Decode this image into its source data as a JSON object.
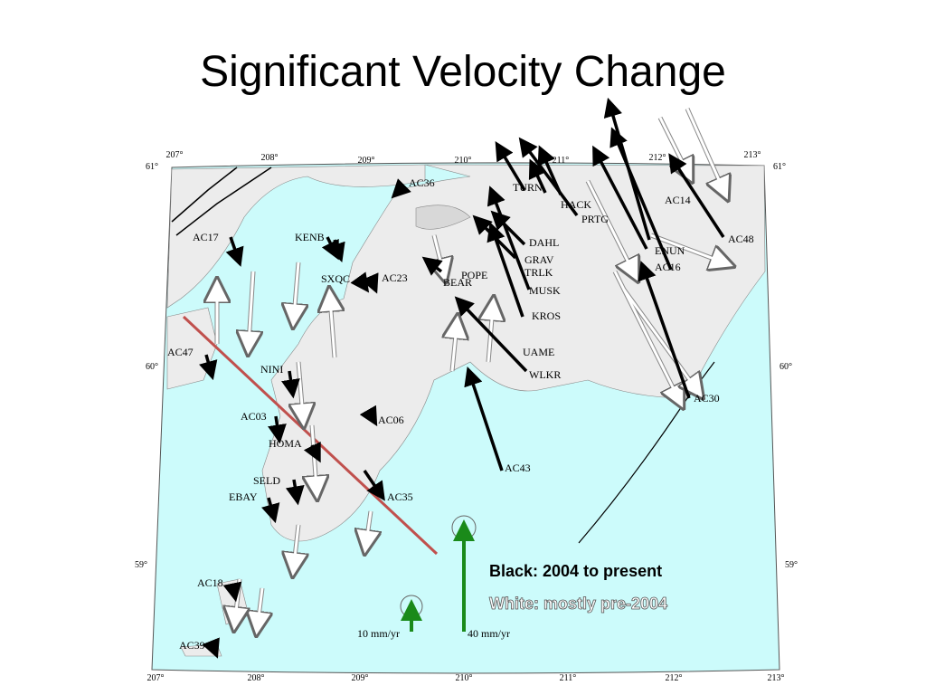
{
  "title": "Significant Velocity Change",
  "map": {
    "lon_labels_top": [
      "207°",
      "208°",
      "209°",
      "210°",
      "211°",
      "212°",
      "213°"
    ],
    "lon_labels_bottom": [
      "207°",
      "208°",
      "209°",
      "210°",
      "211°",
      "212°",
      "213°"
    ],
    "lat_labels_left": [
      "61°",
      "60°",
      "59°"
    ],
    "lat_labels_right": [
      "61°",
      "60°",
      "59°"
    ],
    "stations": [
      "AC36",
      "AC17",
      "KENB",
      "SXQC",
      "AC23",
      "BEAR",
      "POPE",
      "GRAV",
      "DAHL",
      "TRLK",
      "MUSK",
      "KROS",
      "UAME",
      "WLKR",
      "TURN",
      "HACK",
      "PRTG",
      "AC14",
      "ENUN",
      "AC16",
      "AC48",
      "AC30",
      "AC47",
      "NINI",
      "AC03",
      "HOMA",
      "AC06",
      "AC43",
      "SELD",
      "EBAY",
      "AC35",
      "AC18",
      "AC39"
    ],
    "scale": [
      "10 mm/yr",
      "40 mm/yr"
    ],
    "legend": [
      "Black: 2004 to present",
      "White: mostly pre-2004"
    ]
  }
}
